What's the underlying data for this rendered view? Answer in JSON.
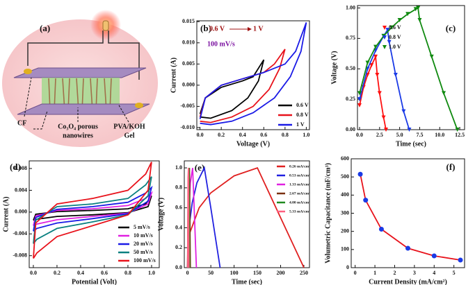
{
  "figure_a": {
    "label": "(a)",
    "cf": "CF",
    "wires_1": "Co₃O₄ porous",
    "wires_2": "nanowires",
    "gel_1": "PVA/KOH",
    "gel_2": "Gel"
  },
  "chart_data": [
    {
      "type": "line",
      "label": "(b)",
      "ylabel": "Current (A)",
      "xlabel": "Voltage (V)",
      "annotations": [
        "0.6 V",
        "1 V",
        "100 mV/s"
      ],
      "legend": "lower right",
      "xlim": [
        -0.03,
        1.03
      ],
      "xticks": [
        {
          "value": 0,
          "label": "0.0"
        },
        0.2,
        0.4,
        0.6,
        0.8,
        {
          "value": 1,
          "label": "1.0"
        }
      ],
      "ylim": [
        -0.0105,
        0.0152
      ],
      "yticks": [
        {
          "value": -0.01,
          "label": "-0.010"
        },
        {
          "value": -0.005,
          "label": "-0.005"
        },
        {
          "value": 0,
          "label": "0.000"
        },
        {
          "value": 0.005,
          "label": "0.005"
        },
        {
          "value": 0.01,
          "label": "0.010"
        },
        {
          "value": 0.015,
          "label": "0.015"
        }
      ],
      "series": [
        {
          "name": "0.6 V",
          "color": "#000000",
          "x": [
            0,
            0.05,
            0.2,
            0.4,
            0.5,
            0.6,
            0.55,
            0.45,
            0.3,
            0.1,
            0
          ],
          "values": [
            -0.0068,
            -0.003,
            -0.0005,
            0.001,
            0.002,
            0.006,
            0.001,
            -0.003,
            -0.006,
            -0.0078,
            -0.0075
          ]
        },
        {
          "name": "0.8 V",
          "color": "#e8121b",
          "x": [
            0,
            0.05,
            0.2,
            0.4,
            0.6,
            0.7,
            0.8,
            0.75,
            0.65,
            0.5,
            0.3,
            0.1,
            0
          ],
          "values": [
            -0.0075,
            -0.003,
            0,
            0.0015,
            0.003,
            0.005,
            0.0085,
            0.004,
            -0.001,
            -0.005,
            -0.0075,
            -0.0088,
            -0.0085
          ]
        },
        {
          "name": "1 V",
          "color": "#1a1ae6",
          "x": [
            0,
            0.05,
            0.2,
            0.4,
            0.6,
            0.8,
            0.9,
            1,
            0.95,
            0.85,
            0.7,
            0.5,
            0.3,
            0.1,
            0
          ],
          "values": [
            -0.008,
            -0.003,
            0,
            0.0015,
            0.003,
            0.005,
            0.008,
            0.0148,
            0.008,
            0.002,
            -0.003,
            -0.0065,
            -0.0085,
            -0.0093,
            -0.009
          ]
        }
      ]
    },
    {
      "type": "line",
      "label": "(c)",
      "ylabel": "Voltage (V)",
      "xlabel": "Time (sec)",
      "marker": "triangle-down",
      "legend": "upper left",
      "xlim": [
        -0.26,
        13.1
      ],
      "xticks": [
        {
          "value": 0,
          "label": "0.0"
        },
        2.5,
        {
          "value": 5,
          "label": "5.0"
        },
        7.5,
        {
          "value": 10,
          "label": "10.0"
        },
        12.5
      ],
      "ylim": [
        0,
        1.02
      ],
      "yticks": [
        {
          "value": 0,
          "label": "0.00"
        },
        0.25,
        {
          "value": 0.5,
          "label": "0.50"
        },
        0.75,
        {
          "value": 1,
          "label": "1.00"
        }
      ],
      "series": [
        {
          "name": "0.6 V",
          "color": "#ff1010",
          "x": [
            0,
            0.5,
            1,
            1.5,
            2,
            2.2,
            2.5,
            3,
            3.3
          ],
          "values": [
            0.2,
            0.35,
            0.45,
            0.53,
            0.6,
            0.45,
            0.3,
            0.1,
            0
          ]
        },
        {
          "name": "0.8 V",
          "color": "#1a3ae6",
          "x": [
            0,
            1,
            2,
            3,
            3.5,
            3.7,
            4.5,
            5.5,
            6.2
          ],
          "values": [
            0.25,
            0.5,
            0.65,
            0.77,
            0.82,
            0.72,
            0.45,
            0.15,
            0
          ]
        },
        {
          "name": "1.0 V",
          "color": "#108a10",
          "x": [
            0,
            1,
            2,
            3,
            4,
            5,
            6,
            7,
            7.3,
            7.5,
            9,
            10.5,
            12.2
          ],
          "values": [
            0.3,
            0.55,
            0.68,
            0.77,
            0.84,
            0.9,
            0.95,
            0.99,
            1,
            0.9,
            0.6,
            0.3,
            0
          ]
        }
      ]
    },
    {
      "type": "line",
      "label": "(d)",
      "ylabel": "Current (A)",
      "xlabel": "Potential (Volt)",
      "legend": "lower right",
      "xlim": [
        -0.035,
        1.065
      ],
      "xticks": [
        {
          "value": 0,
          "label": "0.0"
        },
        0.2,
        0.4,
        0.6,
        0.8,
        {
          "value": 1,
          "label": "1.0"
        }
      ],
      "ylim": [
        -0.0102,
        0.0094
      ],
      "yticks": [
        {
          "value": -0.008,
          "label": "-0.008"
        },
        {
          "value": -0.004,
          "label": "-0.004"
        },
        {
          "value": 0,
          "label": "0.000"
        },
        {
          "value": 0.004,
          "label": "0.004"
        },
        {
          "value": 0.008,
          "label": "0.008"
        }
      ],
      "series": [
        {
          "name": "5 mV/s",
          "color": "#000000",
          "x": [
            0,
            0.02,
            0.2,
            0.5,
            0.8,
            0.95,
            1,
            0.97,
            0.8,
            0.5,
            0.2,
            0.03,
            0
          ],
          "values": [
            -0.0015,
            -0.0004,
            0.0001,
            0.0003,
            0.0006,
            0.0015,
            0.003,
            0.001,
            -0.0001,
            -0.0005,
            -0.0008,
            -0.0013,
            -0.0015
          ]
        },
        {
          "name": "10 mV/s",
          "color": "#e020e0",
          "x": [
            0,
            0.02,
            0.2,
            0.5,
            0.8,
            0.95,
            1,
            0.97,
            0.8,
            0.5,
            0.2,
            0.03,
            0
          ],
          "values": [
            -0.0025,
            -0.0007,
            0.0003,
            0.0006,
            0.0012,
            0.0025,
            0.0035,
            0.0015,
            -0.0002,
            -0.0008,
            -0.0014,
            -0.0022,
            -0.0025
          ]
        },
        {
          "name": "20 mV/s",
          "color": "#1a1ae6",
          "x": [
            0,
            0.02,
            0.2,
            0.5,
            0.8,
            0.95,
            1,
            0.97,
            0.8,
            0.5,
            0.2,
            0.03,
            0
          ],
          "values": [
            -0.0035,
            -0.001,
            0.0005,
            0.001,
            0.0018,
            0.0035,
            0.0045,
            0.002,
            -0.0003,
            -0.0012,
            -0.002,
            -0.003,
            -0.0035
          ]
        },
        {
          "name": "50 mV/s",
          "color": "#0a8080",
          "x": [
            0,
            0.02,
            0.2,
            0.5,
            0.8,
            0.95,
            1,
            0.97,
            0.8,
            0.5,
            0.2,
            0.03,
            0
          ],
          "values": [
            -0.0058,
            -0.0015,
            0.001,
            0.0015,
            0.0025,
            0.005,
            0.0065,
            0.003,
            -0.0005,
            -0.0018,
            -0.003,
            -0.005,
            -0.0058
          ]
        },
        {
          "name": "100 mV/s",
          "color": "#e8121b",
          "x": [
            0,
            0.02,
            0.2,
            0.5,
            0.8,
            0.95,
            1,
            0.97,
            0.8,
            0.5,
            0.2,
            0.03,
            0
          ],
          "values": [
            -0.0085,
            -0.002,
            0.0015,
            0.0025,
            0.004,
            0.007,
            0.0092,
            0.004,
            -0.0005,
            -0.0025,
            -0.0045,
            -0.0075,
            -0.0085
          ]
        }
      ]
    },
    {
      "type": "line",
      "label": "(e)",
      "ylabel": "Voltage (V)",
      "xlabel": "Time (sec)",
      "legend": "upper right",
      "xlim": [
        -7,
        262
      ],
      "xticks": [
        0,
        50,
        100,
        150,
        200,
        250
      ],
      "ylim": [
        0,
        1.07
      ],
      "yticks": [
        {
          "value": 0,
          "label": "0.0"
        },
        0.2,
        0.4,
        0.6,
        0.8,
        {
          "value": 1,
          "label": "1.0"
        }
      ],
      "series": [
        {
          "name": "0.26 mA/cm²",
          "color": "#e02020",
          "x": [
            0,
            5,
            25,
            50,
            100,
            150,
            200,
            250
          ],
          "values": [
            0,
            0.35,
            0.6,
            0.75,
            0.92,
            1,
            0.5,
            0
          ]
        },
        {
          "name": "0.53 mA/cm²",
          "color": "#2020e0",
          "x": [
            0,
            3,
            10,
            20,
            36,
            50,
            70
          ],
          "values": [
            0,
            0.4,
            0.65,
            0.85,
            1,
            0.6,
            0
          ]
        },
        {
          "name": "1.33 mA/cm²",
          "color": "#e020e0",
          "x": [
            0,
            2,
            6,
            11,
            15,
            19
          ],
          "values": [
            0,
            0.5,
            0.85,
            1,
            0.5,
            0
          ]
        },
        {
          "name": "2.67 mA/cm²",
          "color": "#7a3010",
          "x": [
            0,
            2,
            4,
            6
          ],
          "values": [
            0,
            0.8,
            1,
            0
          ]
        },
        {
          "name": "4.00 mA/cm²",
          "color": "#208a20",
          "x": [
            0,
            1.5,
            3,
            4.5
          ],
          "values": [
            0,
            0.9,
            1,
            0
          ]
        },
        {
          "name": "5.33 mA/cm²",
          "color": "#ff6080",
          "x": [
            0,
            1,
            2,
            3
          ],
          "values": [
            0,
            0.9,
            1,
            0
          ]
        }
      ]
    },
    {
      "type": "line",
      "label": "(f)",
      "ylabel": "Volumetric Capacitance (mF/cm³)",
      "xlabel": "Current Density (mA/cm²)",
      "marker": "circle",
      "color": "#e8121b",
      "marker_color": "#1a3ae6",
      "xlim": [
        -0.2,
        5.54
      ],
      "xticks": [
        0,
        1,
        2,
        3,
        4,
        5
      ],
      "ylim": [
        0,
        600
      ],
      "yticks": [
        0,
        100,
        200,
        300,
        400,
        500,
        600
      ],
      "x": [
        0.26,
        0.53,
        1.33,
        2.67,
        4.0,
        5.33
      ],
      "values": [
        515,
        372,
        212,
        107,
        65,
        42
      ]
    }
  ]
}
